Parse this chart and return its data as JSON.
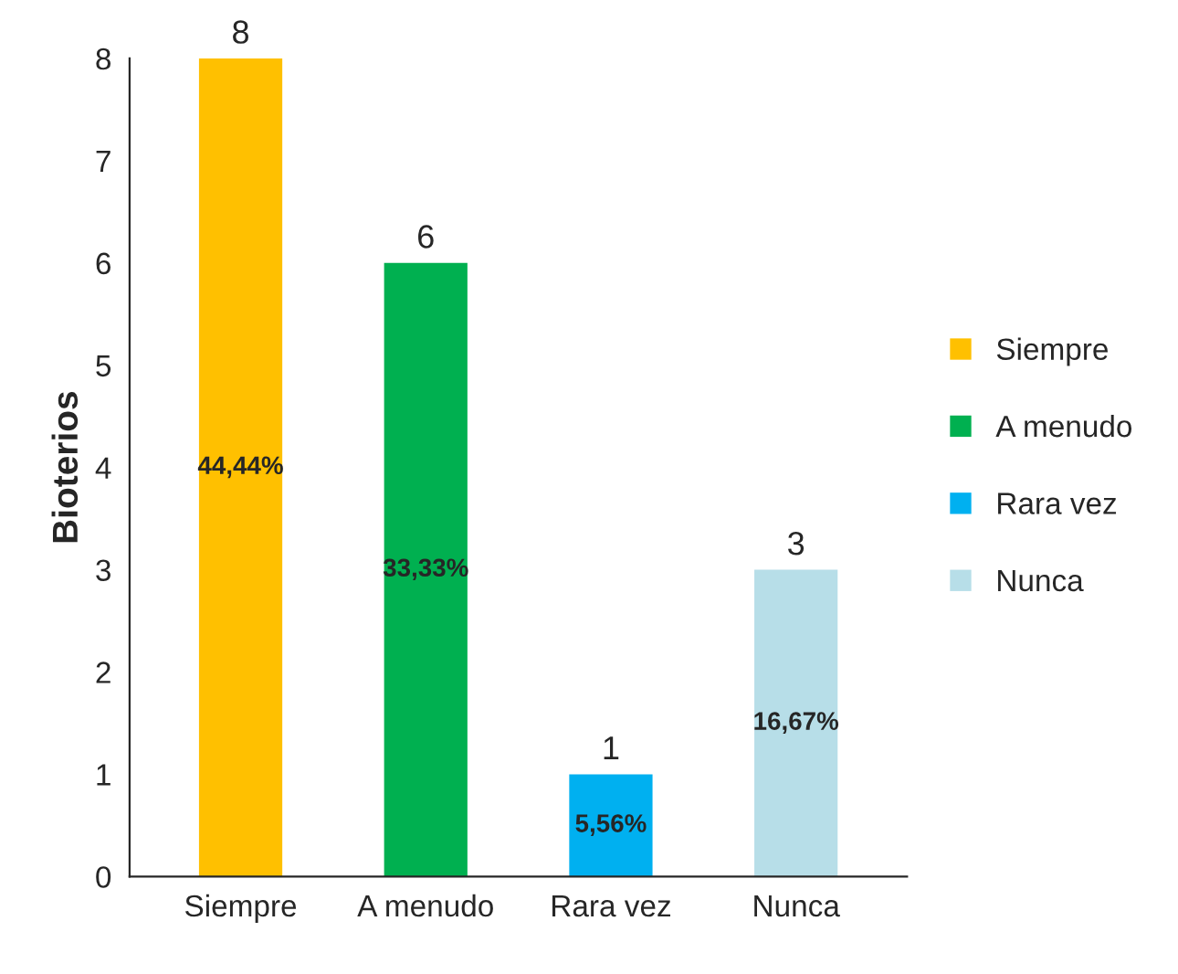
{
  "chart_data": {
    "type": "bar",
    "ylabel": "Bioterios",
    "categories": [
      "Siempre",
      "A menudo",
      "Rara vez",
      "Nunca"
    ],
    "series": [
      {
        "name": "Siempre",
        "color": "#ffc000",
        "values": [
          8,
          null,
          null,
          null
        ]
      },
      {
        "name": "A menudo",
        "color": "#00b050",
        "values": [
          null,
          6,
          null,
          null
        ]
      },
      {
        "name": "Rara vez",
        "color": "#00b0f0",
        "values": [
          null,
          null,
          1,
          null
        ]
      },
      {
        "name": "Nunca",
        "color": "#b7dee8",
        "values": [
          null,
          null,
          null,
          3
        ]
      }
    ],
    "ylim": [
      0,
      8
    ],
    "yticks": [
      0,
      1,
      2,
      3,
      4,
      5,
      6,
      7,
      8
    ],
    "data_labels": true,
    "legend": "right",
    "grid": false,
    "annotations": [
      "44,44%",
      "33,33%",
      "5,56%",
      "16,67%"
    ]
  }
}
